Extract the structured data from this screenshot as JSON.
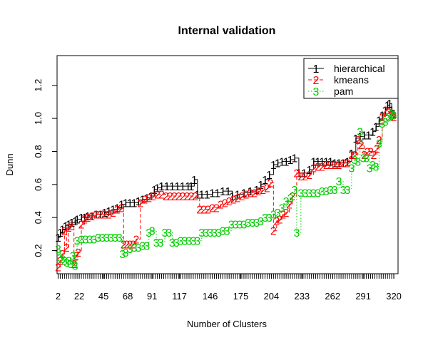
{
  "chart_data": {
    "type": "line",
    "title": "Internal validation",
    "xlabel": "Number of Clusters",
    "ylabel": "Dunn",
    "xlim": [
      1,
      324
    ],
    "ylim": [
      0.06,
      1.38
    ],
    "x_ticks": [
      2,
      22,
      45,
      68,
      91,
      117,
      146,
      175,
      204,
      233,
      262,
      291,
      320
    ],
    "x_tick_labels": [
      "2",
      "22",
      "45",
      "68",
      "91",
      "117",
      "146",
      "175",
      "204",
      "233",
      "262",
      "291",
      "320"
    ],
    "y_ticks": [
      0.2,
      0.4,
      0.6,
      0.8,
      1.0,
      1.2
    ],
    "y_tick_labels": [
      "0.2",
      "0.4",
      "0.6",
      "0.8",
      "1.0",
      "1.2"
    ],
    "legend_position": "top-right",
    "series": [
      {
        "name": "hierarchical",
        "marker": "1",
        "color": "#000000",
        "line_style": "solid",
        "points": [
          [
            2,
            0.28
          ],
          [
            4,
            0.31
          ],
          [
            6,
            0.33
          ],
          [
            9,
            0.35
          ],
          [
            12,
            0.36
          ],
          [
            15,
            0.37
          ],
          [
            18,
            0.38
          ],
          [
            20,
            0.39
          ],
          [
            24,
            0.4
          ],
          [
            27,
            0.4
          ],
          [
            30,
            0.41
          ],
          [
            34,
            0.41
          ],
          [
            38,
            0.42
          ],
          [
            42,
            0.42
          ],
          [
            46,
            0.43
          ],
          [
            50,
            0.44
          ],
          [
            54,
            0.45
          ],
          [
            58,
            0.46
          ],
          [
            62,
            0.48
          ],
          [
            66,
            0.49
          ],
          [
            70,
            0.49
          ],
          [
            74,
            0.49
          ],
          [
            78,
            0.5
          ],
          [
            82,
            0.51
          ],
          [
            86,
            0.52
          ],
          [
            90,
            0.53
          ],
          [
            93,
            0.57
          ],
          [
            96,
            0.58
          ],
          [
            100,
            0.59
          ],
          [
            105,
            0.59
          ],
          [
            110,
            0.59
          ],
          [
            115,
            0.59
          ],
          [
            120,
            0.59
          ],
          [
            125,
            0.59
          ],
          [
            128,
            0.59
          ],
          [
            131,
            0.63
          ],
          [
            134,
            0.54
          ],
          [
            138,
            0.54
          ],
          [
            143,
            0.54
          ],
          [
            148,
            0.55
          ],
          [
            153,
            0.55
          ],
          [
            158,
            0.56
          ],
          [
            163,
            0.56
          ],
          [
            167,
            0.53
          ],
          [
            172,
            0.54
          ],
          [
            178,
            0.55
          ],
          [
            184,
            0.56
          ],
          [
            190,
            0.57
          ],
          [
            194,
            0.6
          ],
          [
            198,
            0.63
          ],
          [
            202,
            0.66
          ],
          [
            206,
            0.72
          ],
          [
            210,
            0.73
          ],
          [
            214,
            0.74
          ],
          [
            218,
            0.74
          ],
          [
            222,
            0.75
          ],
          [
            226,
            0.76
          ],
          [
            230,
            0.67
          ],
          [
            235,
            0.67
          ],
          [
            240,
            0.69
          ],
          [
            244,
            0.74
          ],
          [
            248,
            0.74
          ],
          [
            252,
            0.74
          ],
          [
            256,
            0.74
          ],
          [
            260,
            0.74
          ],
          [
            264,
            0.73
          ],
          [
            268,
            0.73
          ],
          [
            272,
            0.73
          ],
          [
            276,
            0.74
          ],
          [
            280,
            0.79
          ],
          [
            284,
            0.88
          ],
          [
            288,
            0.89
          ],
          [
            292,
            0.9
          ],
          [
            296,
            0.9
          ],
          [
            300,
            0.92
          ],
          [
            303,
            0.95
          ],
          [
            306,
            0.99
          ],
          [
            309,
            1.02
          ],
          [
            312,
            1.05
          ],
          [
            314,
            1.08
          ],
          [
            316,
            1.09
          ],
          [
            318,
            1.05
          ],
          [
            320,
            1.03
          ]
        ]
      },
      {
        "name": "kmeans",
        "marker": "2",
        "color": "#ff0000",
        "line_style": "dashed",
        "points": [
          [
            2,
            0.1
          ],
          [
            4,
            0.14
          ],
          [
            6,
            0.18
          ],
          [
            8,
            0.32
          ],
          [
            10,
            0.22
          ],
          [
            12,
            0.34
          ],
          [
            14,
            0.35
          ],
          [
            17,
            0.12
          ],
          [
            19,
            0.17
          ],
          [
            21,
            0.19
          ],
          [
            24,
            0.36
          ],
          [
            27,
            0.39
          ],
          [
            30,
            0.4
          ],
          [
            34,
            0.41
          ],
          [
            38,
            0.42
          ],
          [
            42,
            0.42
          ],
          [
            46,
            0.42
          ],
          [
            50,
            0.42
          ],
          [
            54,
            0.43
          ],
          [
            58,
            0.45
          ],
          [
            62,
            0.46
          ],
          [
            64,
            0.24
          ],
          [
            67,
            0.24
          ],
          [
            70,
            0.24
          ],
          [
            73,
            0.24
          ],
          [
            76,
            0.27
          ],
          [
            80,
            0.49
          ],
          [
            84,
            0.51
          ],
          [
            88,
            0.52
          ],
          [
            92,
            0.53
          ],
          [
            96,
            0.54
          ],
          [
            100,
            0.54
          ],
          [
            104,
            0.53
          ],
          [
            108,
            0.53
          ],
          [
            112,
            0.53
          ],
          [
            116,
            0.53
          ],
          [
            120,
            0.53
          ],
          [
            124,
            0.53
          ],
          [
            128,
            0.53
          ],
          [
            132,
            0.53
          ],
          [
            136,
            0.45
          ],
          [
            140,
            0.45
          ],
          [
            144,
            0.45
          ],
          [
            148,
            0.46
          ],
          [
            152,
            0.46
          ],
          [
            156,
            0.48
          ],
          [
            160,
            0.49
          ],
          [
            164,
            0.5
          ],
          [
            168,
            0.51
          ],
          [
            172,
            0.52
          ],
          [
            176,
            0.53
          ],
          [
            180,
            0.54
          ],
          [
            184,
            0.55
          ],
          [
            188,
            0.55
          ],
          [
            192,
            0.56
          ],
          [
            196,
            0.57
          ],
          [
            200,
            0.58
          ],
          [
            203,
            0.61
          ],
          [
            206,
            0.32
          ],
          [
            209,
            0.38
          ],
          [
            212,
            0.39
          ],
          [
            215,
            0.42
          ],
          [
            218,
            0.43
          ],
          [
            221,
            0.48
          ],
          [
            224,
            0.53
          ],
          [
            228,
            0.67
          ],
          [
            232,
            0.65
          ],
          [
            236,
            0.65
          ],
          [
            240,
            0.66
          ],
          [
            244,
            0.7
          ],
          [
            248,
            0.71
          ],
          [
            252,
            0.71
          ],
          [
            256,
            0.72
          ],
          [
            260,
            0.72
          ],
          [
            264,
            0.72
          ],
          [
            268,
            0.72
          ],
          [
            272,
            0.73
          ],
          [
            276,
            0.73
          ],
          [
            280,
            0.78
          ],
          [
            283,
            0.78
          ],
          [
            286,
            0.87
          ],
          [
            289,
            0.84
          ],
          [
            292,
            0.78
          ],
          [
            295,
            0.8
          ],
          [
            298,
            0.8
          ],
          [
            301,
            0.78
          ],
          [
            304,
            0.82
          ],
          [
            306,
            0.87
          ],
          [
            309,
            1.01
          ],
          [
            312,
            1.05
          ],
          [
            315,
            1.04
          ],
          [
            318,
            1.02
          ],
          [
            320,
            1.01
          ]
        ]
      },
      {
        "name": "pam",
        "marker": "3",
        "color": "#00cd00",
        "line_style": "dotted",
        "points": [
          [
            2,
            0.21
          ],
          [
            4,
            0.16
          ],
          [
            6,
            0.15
          ],
          [
            8,
            0.14
          ],
          [
            10,
            0.13
          ],
          [
            12,
            0.14
          ],
          [
            14,
            0.12
          ],
          [
            16,
            0.17
          ],
          [
            18,
            0.11
          ],
          [
            20,
            0.26
          ],
          [
            24,
            0.27
          ],
          [
            28,
            0.27
          ],
          [
            32,
            0.27
          ],
          [
            36,
            0.27
          ],
          [
            40,
            0.28
          ],
          [
            44,
            0.28
          ],
          [
            48,
            0.28
          ],
          [
            52,
            0.28
          ],
          [
            56,
            0.28
          ],
          [
            60,
            0.28
          ],
          [
            63,
            0.18
          ],
          [
            66,
            0.19
          ],
          [
            70,
            0.21
          ],
          [
            74,
            0.22
          ],
          [
            78,
            0.22
          ],
          [
            82,
            0.23
          ],
          [
            86,
            0.23
          ],
          [
            88,
            0.31
          ],
          [
            91,
            0.32
          ],
          [
            95,
            0.25
          ],
          [
            99,
            0.25
          ],
          [
            103,
            0.31
          ],
          [
            107,
            0.31
          ],
          [
            110,
            0.25
          ],
          [
            114,
            0.25
          ],
          [
            118,
            0.26
          ],
          [
            122,
            0.26
          ],
          [
            126,
            0.26
          ],
          [
            130,
            0.26
          ],
          [
            134,
            0.26
          ],
          [
            138,
            0.31
          ],
          [
            142,
            0.31
          ],
          [
            146,
            0.31
          ],
          [
            150,
            0.31
          ],
          [
            154,
            0.31
          ],
          [
            158,
            0.32
          ],
          [
            162,
            0.32
          ],
          [
            166,
            0.36
          ],
          [
            170,
            0.36
          ],
          [
            174,
            0.36
          ],
          [
            178,
            0.36
          ],
          [
            182,
            0.37
          ],
          [
            186,
            0.37
          ],
          [
            190,
            0.37
          ],
          [
            194,
            0.38
          ],
          [
            198,
            0.4
          ],
          [
            202,
            0.4
          ],
          [
            206,
            0.42
          ],
          [
            210,
            0.43
          ],
          [
            214,
            0.46
          ],
          [
            218,
            0.5
          ],
          [
            222,
            0.52
          ],
          [
            226,
            0.57
          ],
          [
            228,
            0.31
          ],
          [
            232,
            0.55
          ],
          [
            236,
            0.55
          ],
          [
            240,
            0.55
          ],
          [
            244,
            0.55
          ],
          [
            248,
            0.55
          ],
          [
            252,
            0.56
          ],
          [
            256,
            0.56
          ],
          [
            260,
            0.57
          ],
          [
            264,
            0.57
          ],
          [
            268,
            0.62
          ],
          [
            272,
            0.57
          ],
          [
            276,
            0.57
          ],
          [
            280,
            0.7
          ],
          [
            283,
            0.75
          ],
          [
            286,
            0.74
          ],
          [
            288,
            0.92
          ],
          [
            291,
            0.76
          ],
          [
            294,
            0.76
          ],
          [
            297,
            0.7
          ],
          [
            300,
            0.72
          ],
          [
            303,
            0.71
          ],
          [
            306,
            0.85
          ],
          [
            309,
            0.97
          ],
          [
            312,
            0.98
          ],
          [
            315,
            1.01
          ],
          [
            318,
            1.03
          ],
          [
            320,
            1.02
          ]
        ]
      }
    ]
  }
}
